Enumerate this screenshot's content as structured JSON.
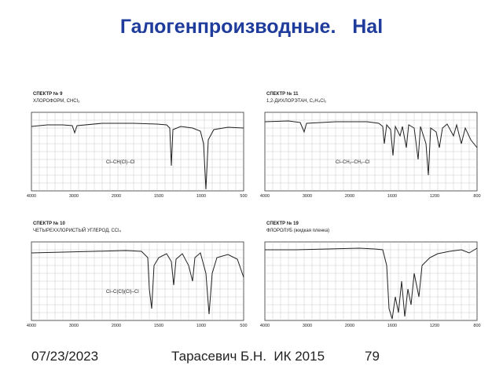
{
  "header": {
    "title": "Галогенпроизводные.   Hal"
  },
  "spectra": [
    {
      "number": "СПЕКТР № 9",
      "compound": "ХЛОРОФОРМ, CHCl₃",
      "formula": "Cl–CH(Cl)–Cl",
      "x_ticks": [
        "4000",
        "3000",
        "2000",
        "1500",
        "1000",
        "500"
      ]
    },
    {
      "number": "СПЕКТР № 11",
      "compound": "1,2-ДИХЛОРЭТАН, C₂H₄Cl₂",
      "formula": "Cl–CH₂–CH₂–Cl",
      "x_ticks": [
        "4000",
        "3000",
        "2000",
        "1600",
        "1200",
        "800"
      ]
    },
    {
      "number": "СПЕКТР № 10",
      "compound": "ЧЕТЫРЕХХЛОРИСТЫЙ УГЛЕРОД, CCl₄",
      "formula": "Cl–C(Cl)(Cl)–Cl",
      "x_ticks": [
        "4000",
        "3000",
        "2000",
        "1500",
        "1000",
        "500"
      ]
    },
    {
      "number": "СПЕКТР № 19",
      "compound": "ФЛОРОЛУБ (жидкая пленка)",
      "formula": "",
      "x_ticks": [
        "4000",
        "3000",
        "2000",
        "1600",
        "1200",
        "800"
      ]
    }
  ],
  "footer": {
    "date": "07/23/2023",
    "author": "Тарасевич Б.Н.  ИК 2015",
    "page": "79"
  }
}
